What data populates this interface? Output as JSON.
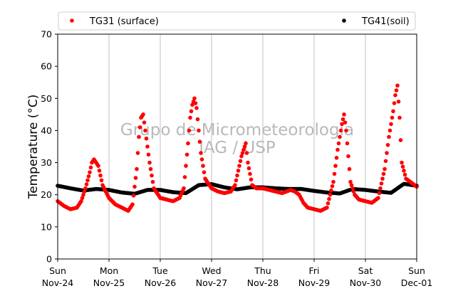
{
  "chart_data": {
    "type": "scatter",
    "xlabel": "",
    "ylabel": "Temperature (°C)",
    "ylim": [
      0,
      70
    ],
    "yticks": [
      0,
      10,
      20,
      30,
      40,
      50,
      60,
      70
    ],
    "xlim": [
      "2019-11-24T00:00",
      "2019-12-01T00:00"
    ],
    "xticks": [
      {
        "day": "Sun",
        "date": "Nov-24"
      },
      {
        "day": "Mon",
        "date": "Nov-25"
      },
      {
        "day": "Tue",
        "date": "Nov-26"
      },
      {
        "day": "Wed",
        "date": "Nov-27"
      },
      {
        "day": "Thu",
        "date": "Nov-28"
      },
      {
        "day": "Fri",
        "date": "Nov-29"
      },
      {
        "day": "Sat",
        "date": "Nov-30"
      },
      {
        "day": "Sun",
        "date": "Dec-01"
      }
    ],
    "grid": "vertical",
    "legend_placement": "top",
    "watermark": [
      "Grupo de Micrometeorologia",
      "IAG / USP"
    ],
    "series": [
      {
        "name": "TG31 (surface)",
        "color": "#ff0000",
        "x": [
          "2019-11-24T00:00",
          "2019-11-24T03:00",
          "2019-11-24T06:00",
          "2019-11-24T09:00",
          "2019-11-24T11:00",
          "2019-11-24T13:00",
          "2019-11-24T15:00",
          "2019-11-24T16:00",
          "2019-11-24T17:00",
          "2019-11-24T19:00",
          "2019-11-24T21:00",
          "2019-11-25T00:00",
          "2019-11-25T03:00",
          "2019-11-25T06:00",
          "2019-11-25T09:00",
          "2019-11-25T11:00",
          "2019-11-25T13:00",
          "2019-11-25T14:00",
          "2019-11-25T15:00",
          "2019-11-25T16:00",
          "2019-11-25T17:00",
          "2019-11-25T19:00",
          "2019-11-25T21:00",
          "2019-11-26T00:00",
          "2019-11-26T03:00",
          "2019-11-26T06:00",
          "2019-11-26T09:00",
          "2019-11-26T11:00",
          "2019-11-26T13:00",
          "2019-11-26T14:00",
          "2019-11-26T15:00",
          "2019-11-26T16:00",
          "2019-11-26T17:00",
          "2019-11-26T19:00",
          "2019-11-26T21:00",
          "2019-11-27T00:00",
          "2019-11-27T03:00",
          "2019-11-27T06:00",
          "2019-11-27T09:00",
          "2019-11-27T11:00",
          "2019-11-27T13:00",
          "2019-11-27T14:00",
          "2019-11-27T15:00",
          "2019-11-27T16:00",
          "2019-11-27T17:00",
          "2019-11-27T19:00",
          "2019-11-27T21:00",
          "2019-11-28T00:00",
          "2019-11-28T03:00",
          "2019-11-28T06:00",
          "2019-11-28T09:00",
          "2019-11-28T11:00",
          "2019-11-28T13:00",
          "2019-11-28T15:00",
          "2019-11-28T17:00",
          "2019-11-28T19:00",
          "2019-11-28T21:00",
          "2019-11-29T00:00",
          "2019-11-29T03:00",
          "2019-11-29T06:00",
          "2019-11-29T09:00",
          "2019-11-29T11:00",
          "2019-11-29T13:00",
          "2019-11-29T14:00",
          "2019-11-29T15:00",
          "2019-11-29T16:00",
          "2019-11-29T17:00",
          "2019-11-29T19:00",
          "2019-11-29T21:00",
          "2019-11-30T00:00",
          "2019-11-30T03:00",
          "2019-11-30T06:00",
          "2019-11-30T09:00",
          "2019-11-30T11:00",
          "2019-11-30T13:00",
          "2019-11-30T14:00",
          "2019-11-30T15:00",
          "2019-11-30T16:00",
          "2019-11-30T17:00",
          "2019-11-30T19:00",
          "2019-11-30T21:00",
          "2019-12-01T00:00"
        ],
        "y": [
          18,
          16.5,
          15.5,
          16,
          18,
          22,
          27,
          30,
          31,
          29,
          23,
          19,
          17,
          16,
          15,
          17,
          28,
          38,
          44,
          45,
          40,
          30,
          22,
          19,
          18.5,
          18,
          19,
          22,
          36,
          44,
          48,
          50,
          47,
          33,
          25,
          22,
          21,
          20.5,
          21,
          23,
          29,
          32,
          34,
          36,
          30,
          23,
          22,
          22,
          21.5,
          21,
          20.5,
          21,
          21.5,
          21,
          20,
          17.5,
          16,
          15.5,
          15,
          16,
          24,
          34,
          42,
          45,
          40,
          32,
          24,
          20,
          18.5,
          18,
          17.5,
          19,
          28,
          38,
          46,
          51,
          54,
          44,
          30,
          25,
          24,
          22.5
        ]
      },
      {
        "name": "TG41(soil)",
        "color": "#000000",
        "x": [
          "2019-11-24T00:00",
          "2019-11-24T06:00",
          "2019-11-24T12:00",
          "2019-11-24T18:00",
          "2019-11-25T00:00",
          "2019-11-25T06:00",
          "2019-11-25T12:00",
          "2019-11-25T18:00",
          "2019-11-26T00:00",
          "2019-11-26T06:00",
          "2019-11-26T12:00",
          "2019-11-26T18:00",
          "2019-11-27T00:00",
          "2019-11-27T06:00",
          "2019-11-27T12:00",
          "2019-11-27T18:00",
          "2019-11-28T00:00",
          "2019-11-28T06:00",
          "2019-11-28T12:00",
          "2019-11-28T18:00",
          "2019-11-29T00:00",
          "2019-11-29T06:00",
          "2019-11-29T12:00",
          "2019-11-29T18:00",
          "2019-11-30T00:00",
          "2019-11-30T06:00",
          "2019-11-30T12:00",
          "2019-11-30T18:00",
          "2019-12-01T00:00"
        ],
        "y": [
          22.8,
          22,
          21.3,
          21.8,
          21.5,
          20.7,
          20.3,
          21.5,
          21.5,
          20.8,
          20.5,
          23,
          23.3,
          22.3,
          21.7,
          22.3,
          22.3,
          22,
          21.8,
          21.8,
          21.2,
          20.7,
          20.4,
          21.8,
          21.5,
          21,
          20.6,
          23.4,
          22.8
        ]
      }
    ]
  }
}
